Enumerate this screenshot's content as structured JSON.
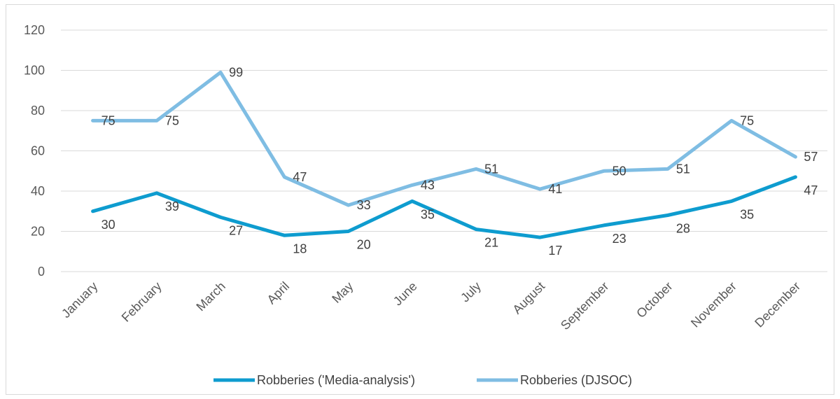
{
  "chart_data": {
    "type": "line",
    "title": "",
    "xlabel": "",
    "ylabel": "",
    "categories": [
      "January",
      "February",
      "March",
      "April",
      "May",
      "June",
      "July",
      "August",
      "September",
      "October",
      "November",
      "December"
    ],
    "ylim": [
      0,
      120
    ],
    "yticks": [
      0,
      20,
      40,
      60,
      80,
      100,
      120
    ],
    "grid": true,
    "legend_position": "bottom",
    "series": [
      {
        "name": "Robberies ('Media-analysis')",
        "color": "#0e9ccf",
        "values": [
          30,
          39,
          27,
          18,
          20,
          35,
          21,
          17,
          23,
          28,
          35,
          47
        ]
      },
      {
        "name": "Robberies (DJSOC)",
        "color": "#7fbde3",
        "values": [
          75,
          75,
          99,
          47,
          33,
          43,
          51,
          41,
          50,
          51,
          75,
          57
        ]
      }
    ]
  }
}
